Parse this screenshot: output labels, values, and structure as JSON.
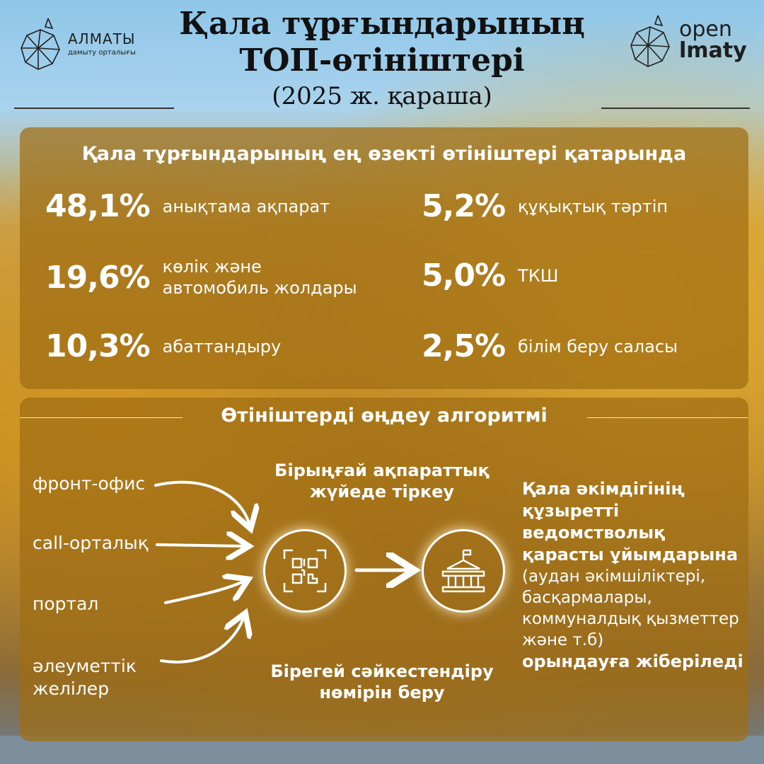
{
  "header": {
    "title_line1": "Қала тұрғындарының",
    "title_line2": "ТОП-өтініштері",
    "subtitle": "(2025 ж. қараша)",
    "logo_left": {
      "name": "АЛМАТЫ",
      "sub": "дамыту орталығы"
    },
    "logo_right": {
      "line1": "open",
      "line2": "lmaty"
    }
  },
  "top_requests": {
    "heading": "Қала тұрғындарының ең өзекті өтініштері қатарында",
    "items": [
      {
        "percent": "48,1%",
        "label": "анықтама ақпарат"
      },
      {
        "percent": "19,6%",
        "label_line1": "көлік және",
        "label_line2": "автомобиль жолдары"
      },
      {
        "percent": "10,3%",
        "label": "абаттандыру"
      },
      {
        "percent": "5,2%",
        "label": "құқықтық тәртіп"
      },
      {
        "percent": "5,0%",
        "label": "ТКШ"
      },
      {
        "percent": "2,5%",
        "label": "білім беру саласы"
      }
    ]
  },
  "algorithm": {
    "heading": "Өтініштерді өңдеу алгоритмі",
    "sources": {
      "front_office": "фронт-офис",
      "call_center": "call-орталық",
      "portal": "портал",
      "social_line1": "әлеуметтік",
      "social_line2": "желілер"
    },
    "step_register_line1": "Бірыңғай ақпараттық",
    "step_register_line2": "жүйеде тіркеу",
    "step_id_line1": "Бірегей сәйкестендіру",
    "step_id_line2": "нөмірін беру",
    "destination": {
      "bold_lines": [
        "Қала әкімдігінің",
        "құзыретті",
        "ведомстволық",
        "қарасты ұйымдарына"
      ],
      "normal_lines": [
        "(аудан әкімшіліктері,",
        "басқармалары,",
        "коммуналдық қызметтер",
        "және т.б)"
      ],
      "final": "орындауға жіберіледі"
    },
    "icons": [
      "qr-code-icon",
      "government-building-icon"
    ]
  }
}
